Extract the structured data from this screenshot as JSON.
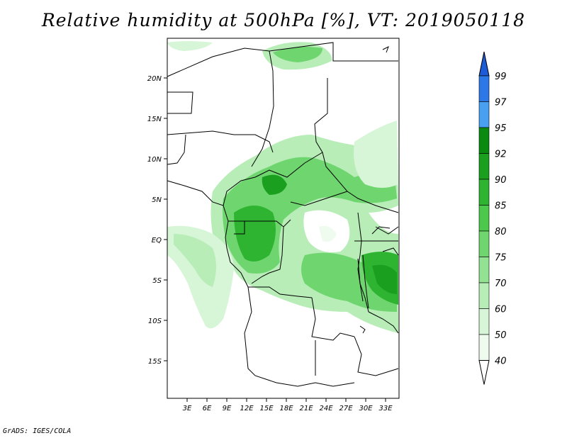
{
  "title": "Relative humidity at 500hPa [%], VT: 2019050118",
  "credit": "GrADS: IGES/COLA",
  "lat_labels": [
    "20N",
    "15N",
    "10N",
    "5N",
    "EQ",
    "5S",
    "10S",
    "15S"
  ],
  "lon_labels": [
    "3E",
    "6E",
    "9E",
    "12E",
    "15E",
    "18E",
    "21E",
    "24E",
    "27E",
    "30E",
    "33E"
  ],
  "colorbar": {
    "levels": [
      "99",
      "97",
      "95",
      "92",
      "90",
      "85",
      "80",
      "75",
      "70",
      "60",
      "50",
      "40"
    ],
    "colors": [
      "#1e5bd6",
      "#2c78e6",
      "#4aa0f0",
      "#0b8a12",
      "#1a9f1f",
      "#2fb432",
      "#4cc84c",
      "#6fd66f",
      "#93e293",
      "#b8edb8",
      "#d7f5d7",
      "#eefbee"
    ]
  },
  "map": {
    "land_color": "#ffffff",
    "boundary_color": "#000000",
    "humidity_palette": [
      "#eefbee",
      "#d7f5d7",
      "#b8edb8",
      "#93e293",
      "#6fd66f",
      "#4cc84c",
      "#2fb432"
    ]
  }
}
